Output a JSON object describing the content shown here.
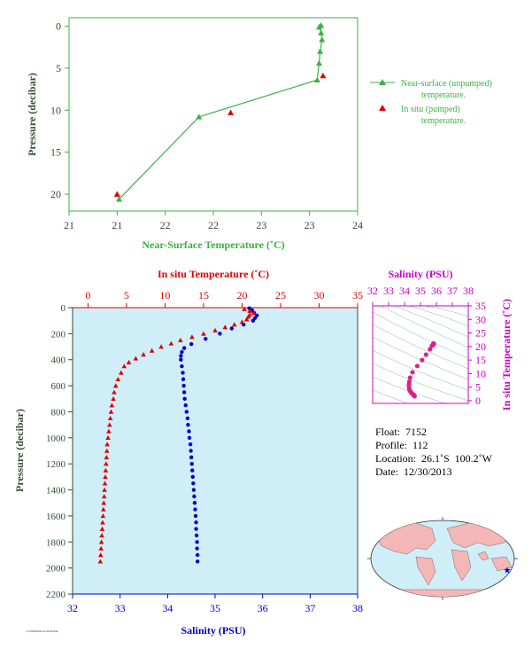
{
  "colors": {
    "green": "#3cb043",
    "red": "#e00000",
    "blue": "#0000cc",
    "magenta": "#cc00cc",
    "axis_dark": "#2f4f2f",
    "panel_bg": "#cfeef8",
    "land": "#f4b6b6",
    "ocean": "#cfeef8"
  },
  "chart_data": [
    {
      "id": "near-surface",
      "type": "line",
      "xlabel": "Near-Surface Temperature (˚C)",
      "ylabel": "Pressure (decibar)",
      "xlim": [
        21,
        24
      ],
      "ylim": [
        22,
        -1
      ],
      "xticks": [
        21,
        21.5,
        22,
        22.5,
        23,
        23.5,
        24
      ],
      "xtick_labels": [
        "21",
        "21",
        "22",
        "22",
        "23",
        "23",
        "24"
      ],
      "yticks": [
        0,
        5,
        10,
        15,
        20
      ],
      "series": [
        {
          "name": "Near-surface (unpumped) temperature.",
          "legend_line1": "Near-surface (unpumped)",
          "legend_line2": "temperature.",
          "color": "#3cb043",
          "marker": "triangle",
          "connected": true,
          "points": [
            [
              21.52,
              20.6
            ],
            [
              22.35,
              10.8
            ],
            [
              23.58,
              6.4
            ],
            [
              23.6,
              4.4
            ],
            [
              23.61,
              3.0
            ],
            [
              23.63,
              1.6
            ],
            [
              23.62,
              0.8
            ],
            [
              23.6,
              0.1
            ],
            [
              23.62,
              -0.1
            ]
          ]
        },
        {
          "name": "In situ (pumped) temperature.",
          "legend_line1": "In situ (pumped)",
          "legend_line2": "temperature.",
          "color": "#e00000",
          "marker": "triangle",
          "connected": false,
          "points": [
            [
              21.5,
              20.0
            ],
            [
              22.68,
              10.3
            ],
            [
              23.64,
              5.9
            ]
          ]
        }
      ]
    },
    {
      "id": "profile",
      "type": "scatter",
      "ylabel": "Pressure (decibar)",
      "ylim": [
        2200,
        0
      ],
      "yticks": [
        0,
        200,
        400,
        600,
        800,
        1000,
        1200,
        1400,
        1600,
        1800,
        2000,
        2200
      ],
      "temperature_axis": {
        "label": "In situ Temperature (˚C)",
        "lim": [
          -2,
          35
        ],
        "ticks": [
          0,
          5,
          10,
          15,
          20,
          25,
          30,
          35
        ]
      },
      "salinity_axis": {
        "label": "Salinity (PSU)",
        "lim": [
          32,
          38
        ],
        "ticks": [
          32,
          33,
          34,
          35,
          36,
          37,
          38
        ]
      },
      "temperature_series": [
        [
          20.3,
          10
        ],
        [
          21.0,
          25
        ],
        [
          21.5,
          40
        ],
        [
          21.0,
          55
        ],
        [
          20.8,
          70
        ],
        [
          20.6,
          90
        ],
        [
          20.0,
          110
        ],
        [
          19.0,
          130
        ],
        [
          17.8,
          150
        ],
        [
          16.5,
          175
        ],
        [
          15.0,
          200
        ],
        [
          13.5,
          225
        ],
        [
          12.0,
          250
        ],
        [
          10.8,
          275
        ],
        [
          9.5,
          300
        ],
        [
          8.3,
          330
        ],
        [
          7.2,
          360
        ],
        [
          6.2,
          390
        ],
        [
          5.3,
          420
        ],
        [
          4.7,
          450
        ],
        [
          4.3,
          500
        ],
        [
          3.9,
          550
        ],
        [
          3.6,
          600
        ],
        [
          3.4,
          650
        ],
        [
          3.3,
          700
        ],
        [
          3.1,
          750
        ],
        [
          3.0,
          800
        ],
        [
          2.9,
          850
        ],
        [
          2.8,
          900
        ],
        [
          2.7,
          950
        ],
        [
          2.6,
          1000
        ],
        [
          2.5,
          1050
        ],
        [
          2.45,
          1100
        ],
        [
          2.4,
          1150
        ],
        [
          2.35,
          1200
        ],
        [
          2.3,
          1250
        ],
        [
          2.25,
          1300
        ],
        [
          2.2,
          1350
        ],
        [
          2.15,
          1400
        ],
        [
          2.1,
          1450
        ],
        [
          2.05,
          1500
        ],
        [
          2.0,
          1550
        ],
        [
          1.95,
          1600
        ],
        [
          1.9,
          1650
        ],
        [
          1.85,
          1700
        ],
        [
          1.8,
          1750
        ],
        [
          1.75,
          1800
        ],
        [
          1.7,
          1850
        ],
        [
          1.65,
          1900
        ],
        [
          1.6,
          1950
        ]
      ],
      "salinity_series": [
        [
          35.72,
          5
        ],
        [
          35.78,
          20
        ],
        [
          35.82,
          40
        ],
        [
          35.88,
          60
        ],
        [
          35.84,
          80
        ],
        [
          35.8,
          100
        ],
        [
          35.6,
          130
        ],
        [
          35.35,
          160
        ],
        [
          35.1,
          200
        ],
        [
          34.8,
          240
        ],
        [
          34.5,
          280
        ],
        [
          34.35,
          310
        ],
        [
          34.3,
          340
        ],
        [
          34.28,
          370
        ],
        [
          34.28,
          400
        ],
        [
          34.3,
          450
        ],
        [
          34.32,
          500
        ],
        [
          34.33,
          550
        ],
        [
          34.34,
          600
        ],
        [
          34.35,
          650
        ],
        [
          34.36,
          700
        ],
        [
          34.38,
          750
        ],
        [
          34.4,
          800
        ],
        [
          34.42,
          850
        ],
        [
          34.43,
          900
        ],
        [
          34.45,
          950
        ],
        [
          34.46,
          1000
        ],
        [
          34.48,
          1050
        ],
        [
          34.49,
          1100
        ],
        [
          34.5,
          1150
        ],
        [
          34.51,
          1200
        ],
        [
          34.52,
          1250
        ],
        [
          34.53,
          1300
        ],
        [
          34.54,
          1350
        ],
        [
          34.55,
          1400
        ],
        [
          34.56,
          1450
        ],
        [
          34.57,
          1500
        ],
        [
          34.58,
          1550
        ],
        [
          34.59,
          1600
        ],
        [
          34.6,
          1650
        ],
        [
          34.6,
          1700
        ],
        [
          34.61,
          1750
        ],
        [
          34.62,
          1800
        ],
        [
          34.62,
          1850
        ],
        [
          34.63,
          1900
        ],
        [
          34.63,
          1950
        ]
      ]
    },
    {
      "id": "ts-diagram",
      "type": "scatter",
      "xlabel": "Salinity (PSU)",
      "ylabel": "In situ Temperature (˚C)",
      "xlim": [
        32,
        38
      ],
      "ylim": [
        -1,
        35
      ],
      "xticks": [
        32,
        33,
        34,
        35,
        36,
        37,
        38
      ],
      "yticks": [
        0,
        5,
        10,
        15,
        20,
        25,
        30,
        35
      ],
      "points": [
        [
          35.72,
          20.3
        ],
        [
          35.82,
          21.2
        ],
        [
          35.84,
          21.0
        ],
        [
          35.8,
          20.6
        ],
        [
          35.6,
          19.0
        ],
        [
          35.35,
          17.0
        ],
        [
          35.1,
          15.0
        ],
        [
          34.8,
          12.8
        ],
        [
          34.5,
          10.5
        ],
        [
          34.35,
          8.5
        ],
        [
          34.3,
          7.0
        ],
        [
          34.28,
          6.0
        ],
        [
          34.28,
          5.2
        ],
        [
          34.3,
          4.5
        ],
        [
          34.32,
          4.0
        ],
        [
          34.35,
          3.6
        ],
        [
          34.38,
          3.3
        ],
        [
          34.42,
          3.0
        ],
        [
          34.46,
          2.7
        ],
        [
          34.5,
          2.5
        ],
        [
          34.53,
          2.3
        ],
        [
          34.56,
          2.15
        ],
        [
          34.59,
          2.0
        ],
        [
          34.61,
          1.8
        ],
        [
          34.63,
          1.65
        ]
      ]
    }
  ],
  "float_info": {
    "float": "Float:  7152",
    "profile": "Profile:  112",
    "location": "Location:  26.1˚S  100.2˚W",
    "date": "Date:  12/30/2013"
  },
  "map": {
    "marker_icon": "star-icon",
    "float_lat": -26.1,
    "float_lon": -100.2
  },
  "footer_code": "F7152PROF112 20131230"
}
